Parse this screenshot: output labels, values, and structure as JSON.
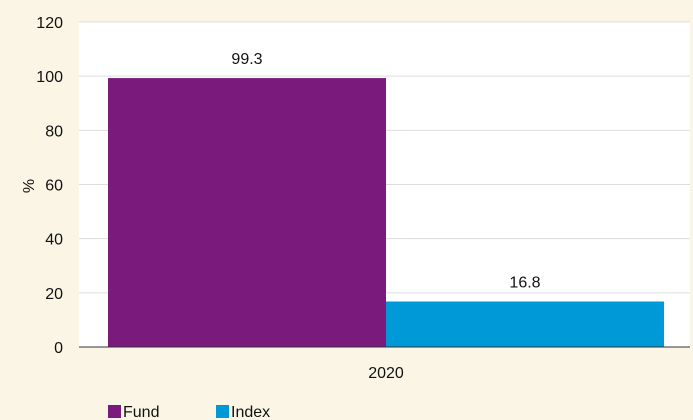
{
  "chart_data": {
    "type": "bar",
    "title": "",
    "xlabel": "",
    "ylabel": "%",
    "categories": [
      "2020"
    ],
    "ylim": [
      0,
      120
    ],
    "yticks": [
      0,
      20,
      40,
      60,
      80,
      100,
      120
    ],
    "grid": true,
    "legend_position": "bottom-left",
    "series": [
      {
        "name": "Fund",
        "values": [
          99.3
        ],
        "labels": [
          "99.3"
        ],
        "color": "#7a1a7c"
      },
      {
        "name": "Index",
        "values": [
          16.8
        ],
        "labels": [
          "16.8"
        ],
        "color": "#0099d8"
      }
    ],
    "plot_background": "#ffffff",
    "page_background": "#faf5e4"
  }
}
